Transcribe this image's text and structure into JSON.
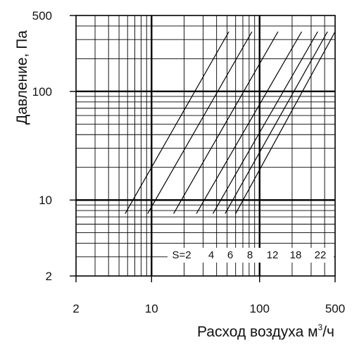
{
  "chart_data": {
    "type": "line",
    "x_scale": "log",
    "y_scale": "log",
    "xlim": [
      2,
      500
    ],
    "ylim": [
      2,
      500
    ],
    "xlabel": "Расход воздуха м",
    "xlabel_sup": "3",
    "xlabel_tail": "/ч",
    "ylabel": "Давление, Па",
    "x_ticks": [
      {
        "value": 2,
        "label": "2"
      },
      {
        "value": 10,
        "label": "10"
      },
      {
        "value": 100,
        "label": "100"
      },
      {
        "value": 500,
        "label": "500"
      }
    ],
    "y_ticks": [
      {
        "value": 2,
        "label": "2"
      },
      {
        "value": 10,
        "label": "10"
      },
      {
        "value": 100,
        "label": "100"
      },
      {
        "value": 500,
        "label": "500"
      }
    ],
    "grid": true,
    "series_label_prefix": "S=",
    "series": [
      {
        "name": "2",
        "x": [
          5.7,
          52
        ],
        "y": [
          7.5,
          355
        ]
      },
      {
        "name": "4",
        "x": [
          9.2,
          85
        ],
        "y": [
          7.5,
          355
        ]
      },
      {
        "name": "6",
        "x": [
          16,
          148
        ],
        "y": [
          7.5,
          355
        ]
      },
      {
        "name": "8",
        "x": [
          26,
          245
        ],
        "y": [
          7.5,
          355
        ]
      },
      {
        "name": "12",
        "x": [
          37,
          345
        ],
        "y": [
          7.5,
          355
        ]
      },
      {
        "name": "18",
        "x": [
          48,
          425
        ],
        "y": [
          7.5,
          355
        ]
      },
      {
        "name": "22",
        "x": [
          60,
          500
        ],
        "y": [
          7.5,
          355
        ]
      }
    ]
  }
}
